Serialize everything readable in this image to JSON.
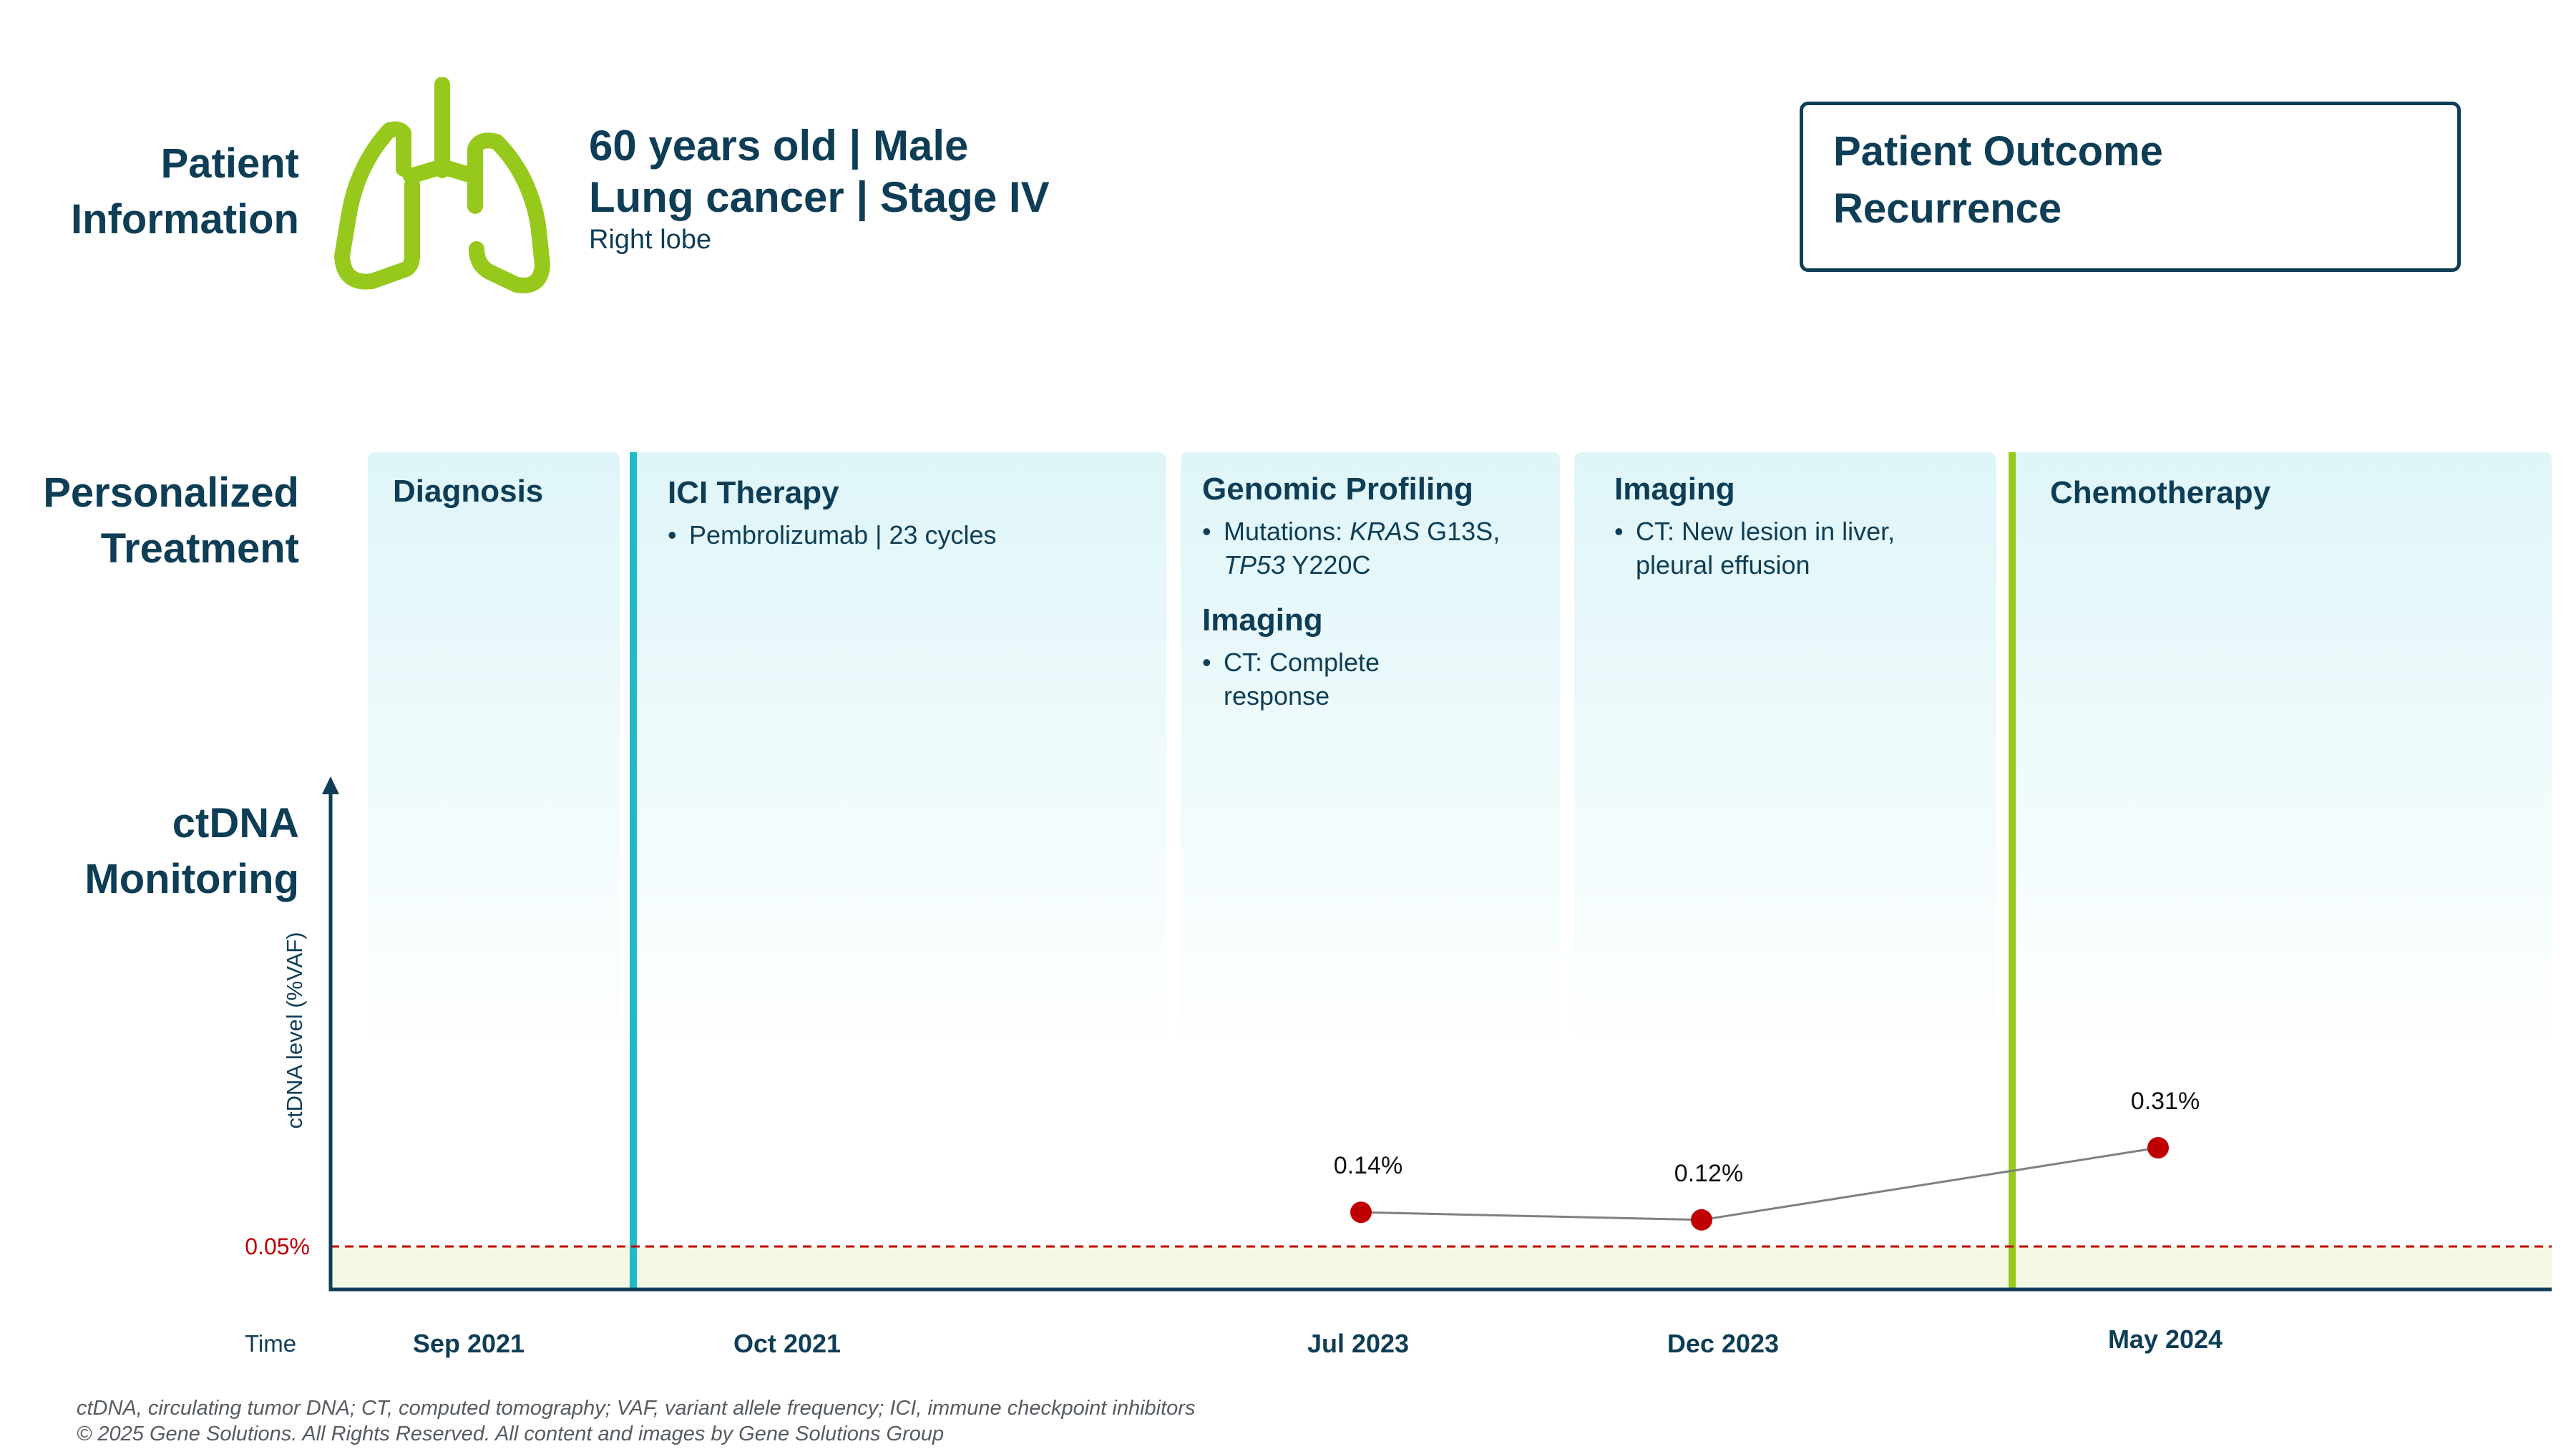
{
  "patient": {
    "section_title_1": "Patient",
    "section_title_2": "Information",
    "line1": "60 years old | Male",
    "line2": "Lung cancer | Stage IV",
    "line3": "Right lobe",
    "icon": "lungs-icon",
    "icon_color": "#97c91d"
  },
  "outcome": {
    "line1": "Patient Outcome",
    "line2": "Recurrence"
  },
  "treatment": {
    "section_title_1": "Personalized",
    "section_title_2": "Treatment",
    "panels": [
      {
        "title": "Diagnosis"
      },
      {
        "title": "ICI Therapy",
        "bullet": "Pembrolizumab | 23 cycles"
      },
      {
        "title": "Genomic Profiling",
        "mut_prefix": "Mutations: ",
        "gene1": "KRAS",
        "mut1": " G13S,",
        "gene2": "TP53",
        "mut2": " Y220C",
        "title2": "Imaging",
        "bullet2a": "CT: Complete",
        "bullet2b": "response"
      },
      {
        "title": "Imaging",
        "bullet_a": "CT: New lesion in liver,",
        "bullet_b": "pleural effusion"
      },
      {
        "title": "Chemotherapy"
      }
    ],
    "bullet_char": "•"
  },
  "monitoring": {
    "section_title_1": "ctDNA",
    "section_title_2": "Monitoring"
  },
  "chart_data": {
    "type": "line",
    "ylabel": "ctDNA level (%VAF)",
    "xlabel": "Time",
    "threshold": {
      "label": "0.05%",
      "value": 0.05,
      "color": "#c00000"
    },
    "timeline": [
      "Sep 2021",
      "Oct 2021",
      "Jul 2023",
      "Dec 2023",
      "May 2024"
    ],
    "points": [
      {
        "x": "Jul 2023",
        "y": 0.14,
        "label": "0.14%"
      },
      {
        "x": "Dec 2023",
        "y": 0.12,
        "label": "0.12%"
      },
      {
        "x": "May 2024",
        "y": 0.31,
        "label": "0.31%"
      }
    ],
    "event_markers": [
      {
        "name": "ICI Therapy start",
        "color": "#1fb9c7"
      },
      {
        "name": "Chemotherapy start",
        "color": "#97c91d"
      }
    ],
    "colors": {
      "points": "#c00000",
      "line": "#808080",
      "axis": "#0e3d56",
      "baseline_band": "#f3f7e4"
    }
  },
  "footer": {
    "line1": "ctDNA, circulating tumor DNA; CT, computed tomography; VAF, variant allele frequency; ICI, immune checkpoint inhibitors",
    "line2": "© 2025 Gene Solutions. All Rights Reserved. All content and images by Gene Solutions Group"
  }
}
